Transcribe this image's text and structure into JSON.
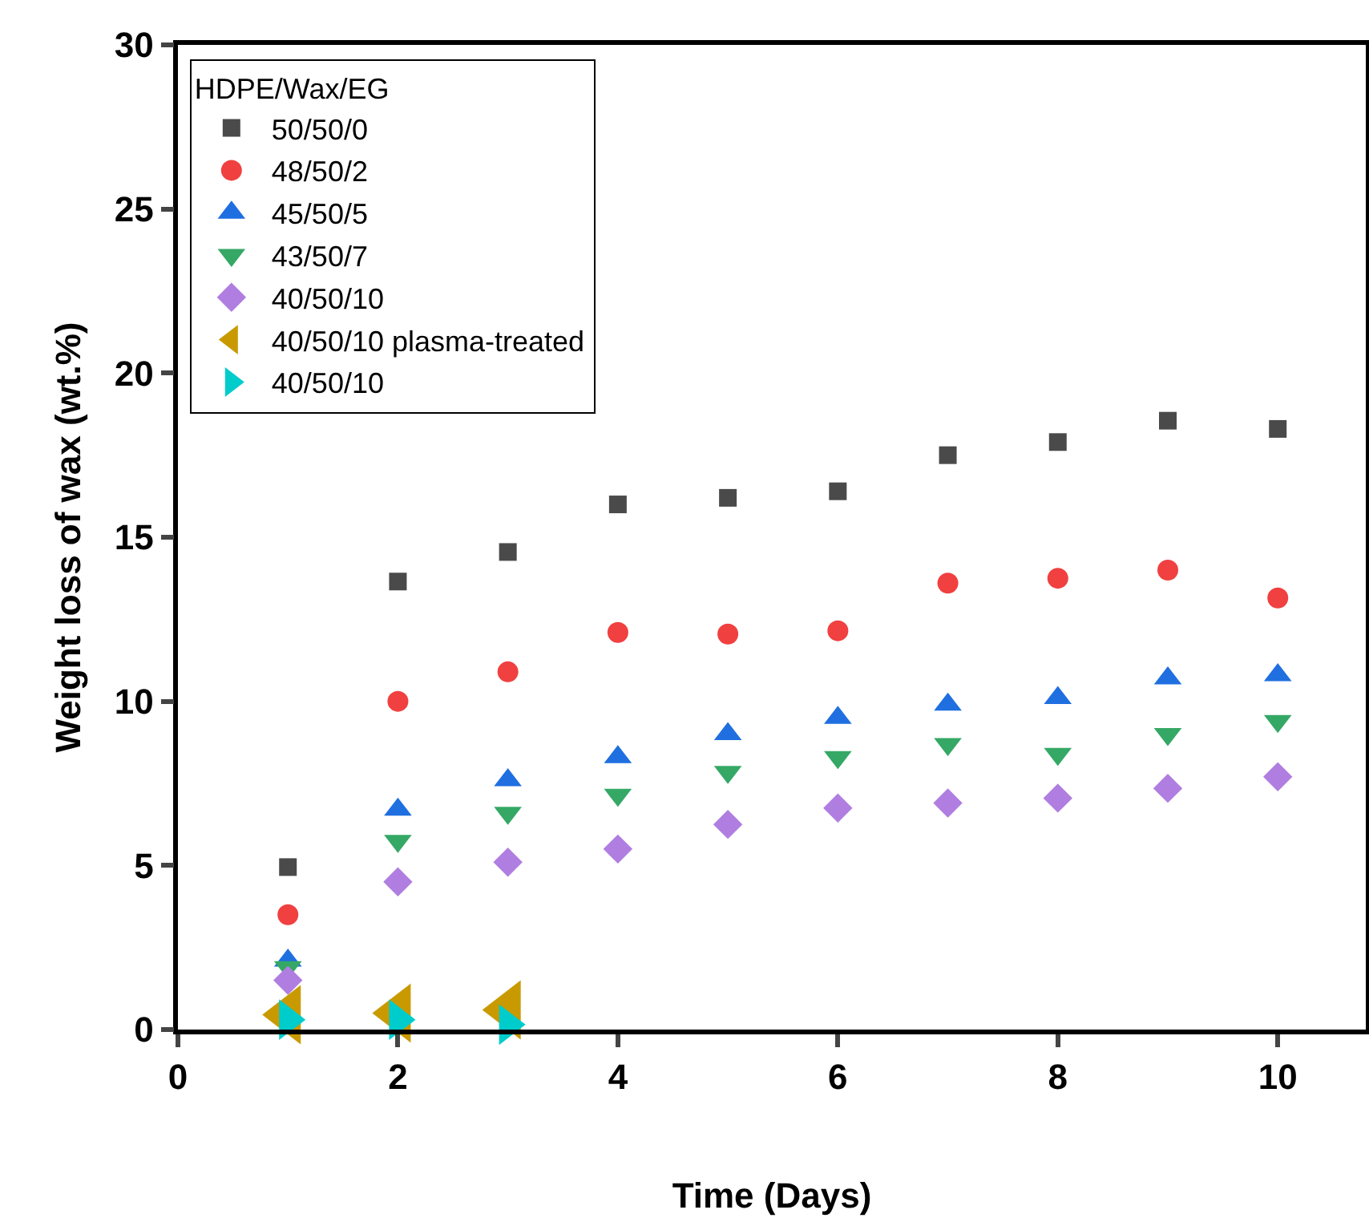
{
  "chart_data": {
    "type": "scatter",
    "xlabel": "Time (Days)",
    "ylabel": "Weight loss of wax (wt.%)",
    "legend_title": "HDPE/Wax/EG",
    "legend": "top left",
    "x": [
      1,
      2,
      3,
      4,
      5,
      6,
      7,
      8,
      9,
      10
    ],
    "xlim": [
      0,
      10.8
    ],
    "xticks": [
      0,
      2,
      4,
      6,
      8,
      10
    ],
    "ylim": [
      0,
      30
    ],
    "yticks": [
      0,
      5,
      10,
      15,
      20,
      25,
      30
    ],
    "grid": false,
    "series": [
      {
        "name": "50/50/0",
        "color": "#4a4a4a",
        "marker": "square",
        "values": [
          4.95,
          13.65,
          14.55,
          16.0,
          16.2,
          16.4,
          17.5,
          17.9,
          18.55,
          18.3
        ]
      },
      {
        "name": "48/50/2",
        "color": "#f04040",
        "marker": "circle",
        "values": [
          3.5,
          10.0,
          10.9,
          12.1,
          12.05,
          12.15,
          13.6,
          13.75,
          14.0,
          13.15
        ]
      },
      {
        "name": "45/50/5",
        "color": "#1f6fe0",
        "marker": "triangle",
        "values": [
          2.1,
          6.7,
          7.6,
          8.3,
          9.0,
          9.5,
          9.9,
          10.1,
          10.7,
          10.8
        ]
      },
      {
        "name": "43/50/7",
        "color": "#35a866",
        "marker": "triangle-down",
        "values": [
          1.9,
          5.75,
          6.6,
          7.15,
          7.85,
          8.3,
          8.7,
          8.4,
          9.0,
          9.4
        ]
      },
      {
        "name": "40/50/10",
        "color": "#b07ee0",
        "marker": "diamond",
        "values": [
          1.5,
          4.5,
          5.1,
          5.5,
          6.25,
          6.75,
          6.9,
          7.05,
          7.35,
          7.7
        ]
      },
      {
        "name": "40/50/10 plasma-treated",
        "color": "#c99a00",
        "marker": "triangle-left",
        "x": [
          1,
          2,
          3
        ],
        "values": [
          0.45,
          0.5,
          0.6
        ]
      },
      {
        "name": "40/50/10",
        "color": "#00cccc",
        "marker": "triangle-right",
        "x": [
          1,
          2,
          3
        ],
        "values": [
          0.3,
          0.3,
          0.15
        ]
      }
    ]
  }
}
